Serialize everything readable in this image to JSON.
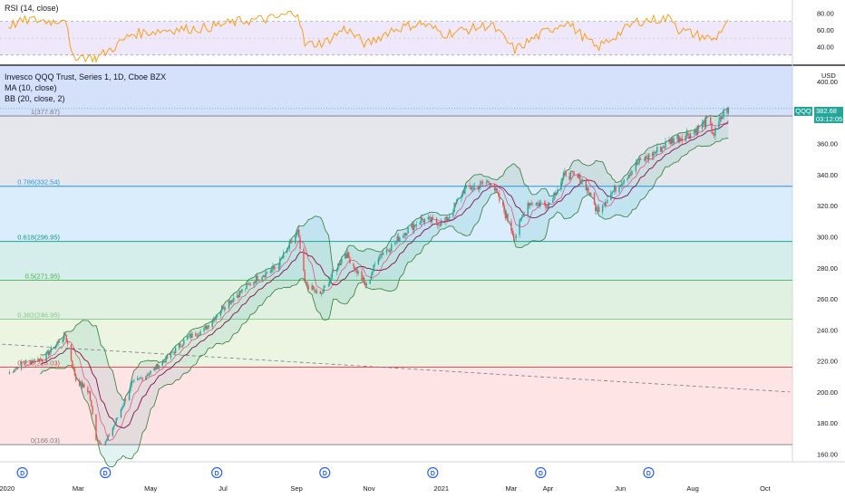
{
  "rsi_pane": {
    "label": "RSI (14, close)",
    "ticks": [
      "80.00",
      "60.00",
      "40.00"
    ]
  },
  "main_pane": {
    "title": "Invesco QQQ Trust, Series 1, 1D, Cboe BZX",
    "ma_label": "MA (10, close)",
    "bb_label": "BB (20, close, 2)",
    "currency": "USD",
    "symbol": "QQQ",
    "last_price": "382.68",
    "countdown": "03:12:05"
  },
  "fib_levels": [
    {
      "label": "1(377.87)",
      "value": 377.87,
      "color": "#787b86"
    },
    {
      "label": "0.786(332.54)",
      "value": 332.54,
      "color": "#2196f3"
    },
    {
      "label": "0.618(296.95)",
      "value": 296.95,
      "color": "#089981"
    },
    {
      "label": "0.5(271.95)",
      "value": 271.95,
      "color": "#4caf50"
    },
    {
      "label": "0.382(246.95)",
      "value": 246.95,
      "color": "#81c784"
    },
    {
      "label": "0.236(216.03)",
      "value": 216.03,
      "color": "#f23645"
    },
    {
      "label": "0(166.03)",
      "value": 166.03,
      "color": "#787b86"
    }
  ],
  "colors": {
    "up": "#26a69a",
    "down": "#ef5350",
    "rsi_line": "#ff9800",
    "rsi_band": "#e1d4f5",
    "ma_line": "#e91e63",
    "bb_line": "#2e7d32",
    "bb_fill": "#26a69a"
  },
  "chart_data": {
    "type": "candlestick",
    "ylim": [
      155,
      410
    ],
    "y_ticks": [
      "400.00",
      "380.00",
      "360.00",
      "340.00",
      "320.00",
      "300.00",
      "280.00",
      "260.00",
      "240.00",
      "220.00",
      "200.00",
      "180.00",
      "160.00"
    ],
    "x_ticks": [
      "2020",
      "Mar",
      "May",
      "Jul",
      "Sep",
      "Nov",
      "2021",
      "Mar",
      "Apr",
      "Jun",
      "Aug",
      "Oct"
    ],
    "dividend_marker": "D",
    "price_path": [
      [
        "2020-01-02",
        212
      ],
      [
        "2020-01-15",
        219
      ],
      [
        "2020-02-01",
        222
      ],
      [
        "2020-02-19",
        237
      ],
      [
        "2020-02-28",
        208
      ],
      [
        "2020-03-10",
        200
      ],
      [
        "2020-03-16",
        170
      ],
      [
        "2020-03-23",
        166
      ],
      [
        "2020-04-01",
        180
      ],
      [
        "2020-04-15",
        205
      ],
      [
        "2020-05-01",
        213
      ],
      [
        "2020-05-15",
        222
      ],
      [
        "2020-06-01",
        235
      ],
      [
        "2020-06-15",
        240
      ],
      [
        "2020-07-01",
        255
      ],
      [
        "2020-07-15",
        264
      ],
      [
        "2020-08-01",
        275
      ],
      [
        "2020-08-15",
        280
      ],
      [
        "2020-09-02",
        303
      ],
      [
        "2020-09-08",
        270
      ],
      [
        "2020-09-21",
        262
      ],
      [
        "2020-10-12",
        290
      ],
      [
        "2020-10-30",
        268
      ],
      [
        "2020-11-09",
        288
      ],
      [
        "2020-11-20",
        294
      ],
      [
        "2020-12-01",
        303
      ],
      [
        "2020-12-15",
        311
      ],
      [
        "2021-01-04",
        309
      ],
      [
        "2021-01-20",
        330
      ],
      [
        "2021-02-12",
        336
      ],
      [
        "2021-03-04",
        300
      ],
      [
        "2021-03-15",
        322
      ],
      [
        "2021-04-01",
        321
      ],
      [
        "2021-04-16",
        341
      ],
      [
        "2021-05-01",
        336
      ],
      [
        "2021-05-12",
        317
      ],
      [
        "2021-06-01",
        335
      ],
      [
        "2021-06-15",
        347
      ],
      [
        "2021-07-01",
        355
      ],
      [
        "2021-07-15",
        363
      ],
      [
        "2021-08-01",
        367
      ],
      [
        "2021-08-13",
        375
      ],
      [
        "2021-08-19",
        366
      ],
      [
        "2021-08-27",
        380
      ],
      [
        "2021-08-31",
        382.68
      ]
    ],
    "rsi_ylim": [
      20,
      90
    ],
    "rsi_bands": [
      30,
      70
    ],
    "rsi_path": [
      [
        "2020-01-02",
        65
      ],
      [
        "2020-01-20",
        72
      ],
      [
        "2020-02-10",
        70
      ],
      [
        "2020-02-19",
        75
      ],
      [
        "2020-02-24",
        30
      ],
      [
        "2020-03-16",
        26
      ],
      [
        "2020-04-01",
        40
      ],
      [
        "2020-04-15",
        55
      ],
      [
        "2020-05-15",
        60
      ],
      [
        "2020-06-15",
        62
      ],
      [
        "2020-07-15",
        70
      ],
      [
        "2020-08-15",
        74
      ],
      [
        "2020-09-02",
        82
      ],
      [
        "2020-09-08",
        42
      ],
      [
        "2020-09-25",
        45
      ],
      [
        "2020-10-12",
        62
      ],
      [
        "2020-10-30",
        42
      ],
      [
        "2020-11-20",
        60
      ],
      [
        "2020-12-15",
        68
      ],
      [
        "2021-01-04",
        55
      ],
      [
        "2021-02-12",
        66
      ],
      [
        "2021-03-04",
        36
      ],
      [
        "2021-03-20",
        50
      ],
      [
        "2021-04-16",
        70
      ],
      [
        "2021-05-12",
        38
      ],
      [
        "2021-06-15",
        70
      ],
      [
        "2021-07-15",
        74
      ],
      [
        "2021-07-20",
        60
      ],
      [
        "2021-08-19",
        48
      ],
      [
        "2021-08-31",
        72
      ]
    ],
    "trend_line": {
      "start": [
        "2019-12-01",
        232
      ],
      "end": [
        "2021-10-22",
        200
      ]
    }
  }
}
